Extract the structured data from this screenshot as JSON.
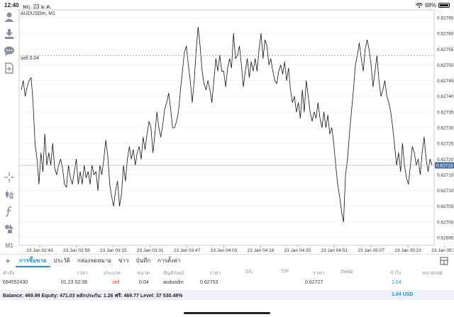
{
  "status_bar": {
    "time": "12:40",
    "date": "พฤ. 23 ม.ค.",
    "battery": "88%",
    "battery_level": 0.88
  },
  "chart": {
    "symbol": "AUDUSDm, M1",
    "sell_label": "sell 0.04",
    "current_price": "0.62718",
    "colors": {
      "line": "#111111",
      "grid": "#e9e9e9",
      "price_tag": "#4a6fa5",
      "sell_line": "#9a9a9a"
    }
  },
  "chart_data": {
    "type": "line",
    "title": "AUDUSDm, M1",
    "xlabel": "",
    "ylabel": "",
    "ylim": [
      0.626925,
      0.627675
    ],
    "yticks": [
      "0.62765",
      "0.62760",
      "0.62755",
      "0.62750",
      "0.62745",
      "0.62740",
      "0.62735",
      "0.62730",
      "0.62725",
      "0.62720",
      "0.62715",
      "0.62710",
      "0.62705",
      "0.62700",
      "0.62695"
    ],
    "xticks": [
      "23 Jan 02:43",
      "23 Jan 02:59",
      "23 Jan 03:15",
      "23 Jan 03:31",
      "23 Jan 03:47",
      "23 Jan 04:03",
      "23 Jan 04:19",
      "23 Jan 04:35",
      "23 Jan 04:51",
      "23 Jan 05:07",
      "23 Jan 05:23",
      "23 Jan 05:39"
    ],
    "sell_price": 0.62753,
    "current_price": 0.62718,
    "series": [
      {
        "values": [
          0.62742,
          0.62745,
          0.6274,
          0.62743,
          0.62745,
          0.62746,
          0.62738,
          0.62725,
          0.6272,
          0.62712,
          0.62722,
          0.62716,
          0.62728,
          0.62718,
          0.62722,
          0.62718,
          0.62725,
          0.62717,
          0.62715,
          0.62718,
          0.6272,
          0.62717,
          0.62712,
          0.62711,
          0.62718,
          0.62714,
          0.62712,
          0.62716,
          0.6272,
          0.62712,
          0.62716,
          0.62712,
          0.62718,
          0.62714,
          0.62716,
          0.62712,
          0.62718,
          0.62715,
          0.62716,
          0.6271,
          0.62718,
          0.62715,
          0.6272,
          0.62726,
          0.62721,
          0.62712,
          0.62708,
          0.62705,
          0.6271,
          0.62713,
          0.62705,
          0.62709,
          0.62718,
          0.62713,
          0.6272,
          0.62724,
          0.6272,
          0.62723,
          0.62718,
          0.62722,
          0.62724,
          0.6272,
          0.62727,
          0.62723,
          0.62728,
          0.62732,
          0.6273,
          0.62722,
          0.62728,
          0.62735,
          0.6273,
          0.62727,
          0.62731,
          0.62736,
          0.62738,
          0.62741,
          0.62736,
          0.6273,
          0.6273,
          0.62732,
          0.62735,
          0.62742,
          0.62748,
          0.62754,
          0.62756,
          0.6275,
          0.62745,
          0.62738,
          0.62745,
          0.62755,
          0.62762,
          0.62756,
          0.62748,
          0.62744,
          0.62742,
          0.62745,
          0.62742,
          0.62738,
          0.62745,
          0.62752,
          0.62748,
          0.62753,
          0.62748,
          0.62748,
          0.62743,
          0.62749,
          0.62752,
          0.62749,
          0.6276,
          0.62752,
          0.62753,
          0.62756,
          0.6275,
          0.62743,
          0.62748,
          0.62752,
          0.62746,
          0.62751,
          0.62748,
          0.62752,
          0.62748,
          0.62755,
          0.6276,
          0.62752,
          0.62758,
          0.62756,
          0.6275,
          0.62752,
          0.62748,
          0.62745,
          0.62744,
          0.62748,
          0.6275,
          0.62747,
          0.62751,
          0.62745,
          0.62749,
          0.62742,
          0.62738,
          0.6274,
          0.62735,
          0.62738,
          0.62733,
          0.62742,
          0.62735,
          0.62745,
          0.6274,
          0.62735,
          0.62732,
          0.62735,
          0.62733,
          0.62738,
          0.62733,
          0.6273,
          0.62735,
          0.6273,
          0.62734,
          0.62728,
          0.6273,
          0.62725,
          0.62718,
          0.62712,
          0.62708,
          0.62703,
          0.627,
          0.62715,
          0.6272,
          0.62728,
          0.62735,
          0.62742,
          0.6275,
          0.62753,
          0.62757,
          0.62752,
          0.62748,
          0.62755,
          0.62758,
          0.62755,
          0.6275,
          0.62743,
          0.62748,
          0.62753,
          0.62745,
          0.6274,
          0.62742,
          0.62745,
          0.6274,
          0.62738,
          0.62735,
          0.6273,
          0.62724,
          0.62718,
          0.62722,
          0.62716,
          0.62725,
          0.62718,
          0.62714,
          0.62712,
          0.62718,
          0.62724,
          0.62722,
          0.62718,
          0.6272,
          0.62715,
          0.62722,
          0.62727,
          0.6272,
          0.62716,
          0.6272,
          0.62718
        ]
      }
    ]
  },
  "toolbar": {
    "icons": [
      "account-icon",
      "trade-icon",
      "chat-icon",
      "add-chart-icon",
      "crosshair-icon",
      "chart-type-icon",
      "indicators-icon",
      "objects-icon"
    ],
    "timeframe": "M1"
  },
  "tabs": {
    "plus_label": "+",
    "items": [
      "การซื้อขาย",
      "ประวัติ",
      "กล่องจดหมาย",
      "ข่าว",
      "บันทึก",
      "การตั้งค่า"
    ]
  },
  "table": {
    "headers": [
      "คำสั่ง",
      "เวลา",
      "ประเภท",
      "ขนาด",
      "สัญลักษณ์",
      "ราคา",
      "S/L",
      "T/P",
      "ราคา",
      "Swap",
      "กำไร",
      "หมายเหตุ"
    ],
    "row": {
      "order": "694552430",
      "time": "01.23 02:38",
      "type": "sell",
      "size": "0.04",
      "symbol": "audusdm",
      "open_price": "0.62753",
      "current_price": "0.62727",
      "profit": "1.04"
    },
    "balance_text": "Balance: 469.99 Equity: 471.03 หลักประกัน: 1.26 ฟรี: 469.77 Level: 37 530.48%",
    "balance_profit": "1.04  USD"
  }
}
